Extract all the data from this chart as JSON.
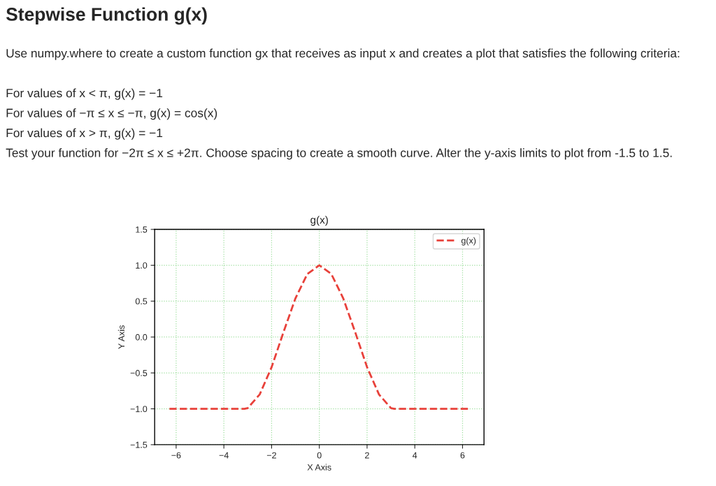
{
  "chart_data": {
    "type": "line",
    "title": "g(x)",
    "xlabel": "X Axis",
    "ylabel": "Y Axis",
    "x": [
      -6.28,
      -3.14,
      -3.0,
      -2.5,
      -2.0,
      -1.5,
      -1.0,
      -0.5,
      0.0,
      0.5,
      1.0,
      1.5,
      2.0,
      2.5,
      3.0,
      3.14,
      6.28
    ],
    "series": [
      {
        "name": "g(x)",
        "color": "#e8413a",
        "values": [
          -1,
          -1,
          -0.99,
          -0.8,
          -0.42,
          0.07,
          0.54,
          0.88,
          1.0,
          0.88,
          0.54,
          0.07,
          -0.42,
          -0.8,
          -0.99,
          -1,
          -1
        ]
      }
    ],
    "xlim": [
      -6.9,
      6.9
    ],
    "ylim": [
      -1.5,
      1.5
    ],
    "xticks": [
      {
        "value": -6,
        "label": "−6"
      },
      {
        "value": -4,
        "label": "−4"
      },
      {
        "value": -2,
        "label": "−2"
      },
      {
        "value": 0,
        "label": "0"
      },
      {
        "value": 2,
        "label": "2"
      },
      {
        "value": 4,
        "label": "4"
      },
      {
        "value": 6,
        "label": "6"
      }
    ],
    "yticks": [
      {
        "value": -1.5,
        "label": "−1.5"
      },
      {
        "value": -1.0,
        "label": "−1.0"
      },
      {
        "value": -0.5,
        "label": "−0.5"
      },
      {
        "value": 0,
        "label": "0.0"
      },
      {
        "value": 0.5,
        "label": "0.5"
      },
      {
        "value": 1.0,
        "label": "1.0"
      },
      {
        "value": 1.5,
        "label": "1.5"
      }
    ],
    "grid": true,
    "legend": "top right",
    "line_style": "dashed",
    "marker": "none",
    "annotations": [
      "Stepwise Function g(x)",
      "Use numpy.where to create a custom function gx that receives as input x and creates a plot that satisfies the following criteria:",
      "For values of x < π, g(x) = −1",
      "For values of −π ≤ x ≤ −π, g(x) = cos(x)",
      "For values of x > π, g(x) = −1",
      "Test your function for −2π ≤ x ≤ +2π. Choose spacing to create a smooth curve. Alter the y-axis limits to plot from -1.5 to 1.5."
    ]
  }
}
